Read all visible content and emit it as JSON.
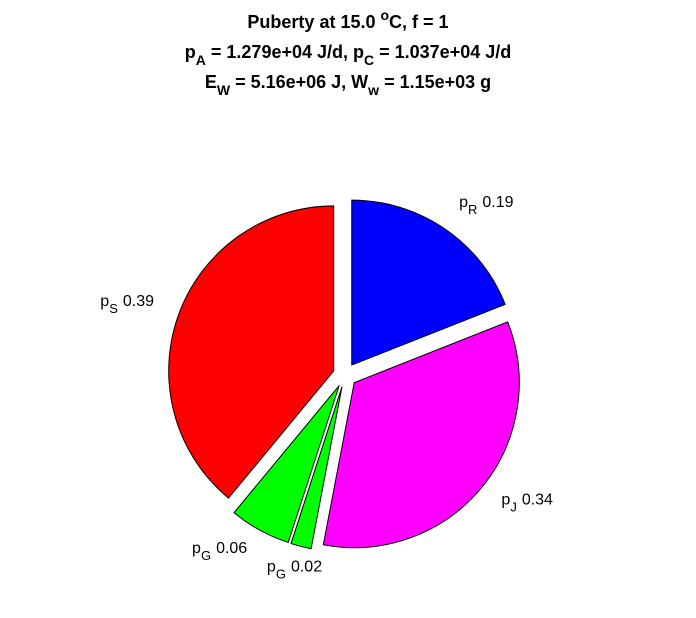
{
  "chart_data": {
    "type": "pie",
    "title_lines": [
      [
        {
          "text": "Puberty at 15.0 "
        },
        {
          "sup": "o"
        },
        {
          "text": "C, f = 1"
        }
      ],
      [
        {
          "text": "p"
        },
        {
          "sub": "A"
        },
        {
          "text": " = 1.279e+04 J/d,  p"
        },
        {
          "sub": "C"
        },
        {
          "text": " = 1.037e+04 J/d"
        }
      ],
      [
        {
          "text": "E"
        },
        {
          "sub": "W"
        },
        {
          "text": " = 5.16e+06 J, W"
        },
        {
          "sub": "w"
        },
        {
          "text": " = 1.15e+03 g"
        }
      ]
    ],
    "label_symbols": [
      "p",
      "p",
      "p",
      "p",
      "p"
    ],
    "label_subscripts": [
      "R",
      "J",
      "G",
      "G",
      "S"
    ],
    "values": [
      0.19,
      0.34,
      0.02,
      0.06,
      0.39
    ],
    "colors": [
      "#0000ff",
      "#ff00ff",
      "#00ff00",
      "#00ff00",
      "#ff0000"
    ]
  }
}
